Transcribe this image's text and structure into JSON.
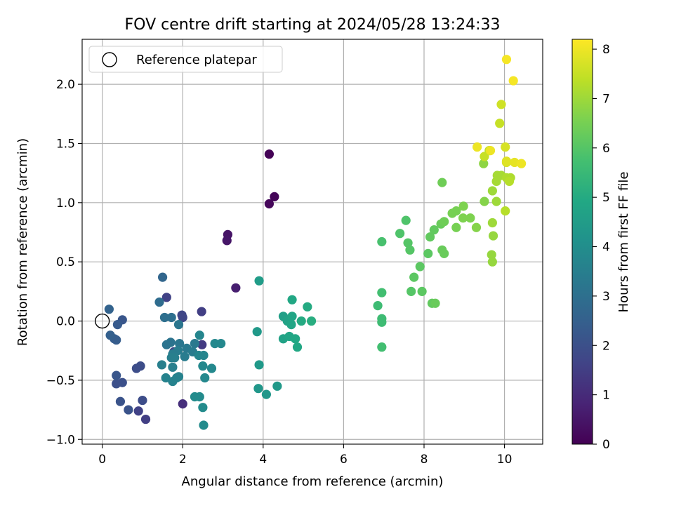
{
  "chart_data": {
    "type": "scatter",
    "title": "FOV centre drift starting at 2024/05/28 13:24:33",
    "xlabel": "Angular distance from reference (arcmin)",
    "ylabel": "Rotation from reference (arcmin)",
    "xlim": [
      -0.5,
      10.95
    ],
    "ylim": [
      -1.04,
      2.38
    ],
    "xticks": [
      0,
      2,
      4,
      6,
      8,
      10
    ],
    "xtick_labels": [
      "0",
      "2",
      "4",
      "6",
      "8",
      "10"
    ],
    "yticks": [
      -1.0,
      -0.5,
      0.0,
      0.5,
      1.0,
      1.5,
      2.0
    ],
    "ytick_labels": [
      "−1.0",
      "−0.5",
      "0.0",
      "0.5",
      "1.0",
      "1.5",
      "2.0"
    ],
    "grid": true,
    "legend": {
      "placement": "top-left",
      "entries": [
        "Reference platepar"
      ]
    },
    "reference_point": {
      "x": 0,
      "y": 0,
      "label": "Reference platepar"
    },
    "colorbar": {
      "label": "Hours from first FF file",
      "range": [
        0,
        8.2
      ],
      "ticks": [
        0,
        1,
        2,
        3,
        4,
        5,
        6,
        7,
        8
      ],
      "tick_labels": [
        "0",
        "1",
        "2",
        "3",
        "4",
        "5",
        "6",
        "7",
        "8"
      ],
      "colormap": "viridis"
    },
    "points": [
      {
        "x": 4.15,
        "y": 1.41,
        "h": 0.05
      },
      {
        "x": 4.28,
        "y": 1.05,
        "h": 0.1
      },
      {
        "x": 4.15,
        "y": 0.99,
        "h": 0.15
      },
      {
        "x": 3.12,
        "y": 0.73,
        "h": 0.45
      },
      {
        "x": 3.1,
        "y": 0.68,
        "h": 0.5
      },
      {
        "x": 3.32,
        "y": 0.28,
        "h": 0.7
      },
      {
        "x": 2.0,
        "y": -0.7,
        "h": 1.1
      },
      {
        "x": 2.48,
        "y": -0.2,
        "h": 1.4
      },
      {
        "x": 2.47,
        "y": 0.08,
        "h": 1.5
      },
      {
        "x": 1.08,
        "y": -0.83,
        "h": 1.5
      },
      {
        "x": 0.9,
        "y": -0.76,
        "h": 1.6
      },
      {
        "x": 1.6,
        "y": 0.2,
        "h": 1.6
      },
      {
        "x": 1.98,
        "y": 0.05,
        "h": 1.7
      },
      {
        "x": 2.0,
        "y": 0.03,
        "h": 1.7
      },
      {
        "x": 1.78,
        "y": -0.26,
        "h": 1.8
      },
      {
        "x": 1.0,
        "y": -0.67,
        "h": 1.9
      },
      {
        "x": 0.95,
        "y": -0.38,
        "h": 1.9
      },
      {
        "x": 0.85,
        "y": -0.4,
        "h": 1.9
      },
      {
        "x": 0.5,
        "y": -0.52,
        "h": 2.0
      },
      {
        "x": 0.35,
        "y": -0.53,
        "h": 2.0
      },
      {
        "x": 0.65,
        "y": -0.75,
        "h": 2.1
      },
      {
        "x": 0.45,
        "y": -0.68,
        "h": 2.1
      },
      {
        "x": 0.35,
        "y": -0.46,
        "h": 2.2
      },
      {
        "x": 0.5,
        "y": 0.01,
        "h": 2.2
      },
      {
        "x": 0.38,
        "y": -0.03,
        "h": 2.3
      },
      {
        "x": 0.3,
        "y": -0.15,
        "h": 2.4
      },
      {
        "x": 0.35,
        "y": -0.16,
        "h": 2.4
      },
      {
        "x": 0.2,
        "y": -0.12,
        "h": 2.5
      },
      {
        "x": 0.17,
        "y": 0.1,
        "h": 2.6
      },
      {
        "x": 1.5,
        "y": 0.37,
        "h": 2.7
      },
      {
        "x": 1.42,
        "y": 0.16,
        "h": 2.9
      },
      {
        "x": 1.55,
        "y": 0.03,
        "h": 3.0
      },
      {
        "x": 1.72,
        "y": 0.03,
        "h": 3.0
      },
      {
        "x": 1.6,
        "y": -0.2,
        "h": 3.1
      },
      {
        "x": 1.7,
        "y": -0.18,
        "h": 3.1
      },
      {
        "x": 1.9,
        "y": -0.03,
        "h": 3.2
      },
      {
        "x": 1.92,
        "y": -0.19,
        "h": 3.2
      },
      {
        "x": 2.1,
        "y": -0.23,
        "h": 3.3
      },
      {
        "x": 2.3,
        "y": -0.19,
        "h": 3.3
      },
      {
        "x": 2.25,
        "y": -0.26,
        "h": 3.4
      },
      {
        "x": 2.05,
        "y": -0.3,
        "h": 3.4
      },
      {
        "x": 1.88,
        "y": -0.25,
        "h": 3.4
      },
      {
        "x": 1.75,
        "y": -0.28,
        "h": 3.4
      },
      {
        "x": 1.72,
        "y": -0.31,
        "h": 3.5
      },
      {
        "x": 1.8,
        "y": -0.31,
        "h": 3.5
      },
      {
        "x": 1.48,
        "y": -0.37,
        "h": 3.5
      },
      {
        "x": 1.75,
        "y": -0.39,
        "h": 3.5
      },
      {
        "x": 1.58,
        "y": -0.48,
        "h": 3.6
      },
      {
        "x": 1.75,
        "y": -0.51,
        "h": 3.6
      },
      {
        "x": 1.9,
        "y": -0.47,
        "h": 3.6
      },
      {
        "x": 1.85,
        "y": -0.48,
        "h": 3.6
      },
      {
        "x": 2.4,
        "y": -0.29,
        "h": 3.7
      },
      {
        "x": 2.42,
        "y": -0.12,
        "h": 3.7
      },
      {
        "x": 2.52,
        "y": -0.29,
        "h": 3.7
      },
      {
        "x": 2.5,
        "y": -0.38,
        "h": 3.8
      },
      {
        "x": 2.55,
        "y": -0.48,
        "h": 3.8
      },
      {
        "x": 2.72,
        "y": -0.4,
        "h": 3.8
      },
      {
        "x": 2.8,
        "y": -0.19,
        "h": 3.8
      },
      {
        "x": 2.95,
        "y": -0.19,
        "h": 3.8
      },
      {
        "x": 2.3,
        "y": -0.64,
        "h": 3.9
      },
      {
        "x": 2.42,
        "y": -0.64,
        "h": 3.9
      },
      {
        "x": 2.5,
        "y": -0.73,
        "h": 3.9
      },
      {
        "x": 2.52,
        "y": -0.88,
        "h": 3.9
      },
      {
        "x": 3.88,
        "y": -0.57,
        "h": 4.3
      },
      {
        "x": 4.08,
        "y": -0.62,
        "h": 4.3
      },
      {
        "x": 4.35,
        "y": -0.55,
        "h": 4.4
      },
      {
        "x": 3.9,
        "y": -0.37,
        "h": 4.4
      },
      {
        "x": 3.85,
        "y": -0.09,
        "h": 4.4
      },
      {
        "x": 3.9,
        "y": 0.34,
        "h": 4.5
      },
      {
        "x": 4.5,
        "y": 0.04,
        "h": 4.6
      },
      {
        "x": 4.6,
        "y": 0.0,
        "h": 4.7
      },
      {
        "x": 4.5,
        "y": -0.15,
        "h": 4.7
      },
      {
        "x": 4.65,
        "y": -0.13,
        "h": 4.8
      },
      {
        "x": 4.7,
        "y": -0.03,
        "h": 4.8
      },
      {
        "x": 4.72,
        "y": 0.04,
        "h": 4.8
      },
      {
        "x": 4.72,
        "y": 0.18,
        "h": 4.9
      },
      {
        "x": 4.8,
        "y": -0.15,
        "h": 4.9
      },
      {
        "x": 4.85,
        "y": -0.22,
        "h": 4.9
      },
      {
        "x": 4.95,
        "y": 0.0,
        "h": 5.0
      },
      {
        "x": 5.1,
        "y": 0.12,
        "h": 5.0
      },
      {
        "x": 5.2,
        "y": 0.0,
        "h": 5.1
      },
      {
        "x": 6.85,
        "y": 0.13,
        "h": 5.6
      },
      {
        "x": 6.95,
        "y": 0.02,
        "h": 5.6
      },
      {
        "x": 6.95,
        "y": -0.01,
        "h": 5.6
      },
      {
        "x": 6.95,
        "y": -0.22,
        "h": 5.7
      },
      {
        "x": 6.95,
        "y": 0.24,
        "h": 5.7
      },
      {
        "x": 6.95,
        "y": 0.67,
        "h": 5.8
      },
      {
        "x": 7.4,
        "y": 0.74,
        "h": 5.9
      },
      {
        "x": 7.55,
        "y": 0.85,
        "h": 5.9
      },
      {
        "x": 7.6,
        "y": 0.66,
        "h": 6.0
      },
      {
        "x": 7.65,
        "y": 0.6,
        "h": 6.0
      },
      {
        "x": 7.68,
        "y": 0.25,
        "h": 6.0
      },
      {
        "x": 7.75,
        "y": 0.37,
        "h": 6.1
      },
      {
        "x": 7.95,
        "y": 0.25,
        "h": 6.1
      },
      {
        "x": 7.9,
        "y": 0.46,
        "h": 6.1
      },
      {
        "x": 8.1,
        "y": 0.57,
        "h": 6.1
      },
      {
        "x": 8.15,
        "y": 0.71,
        "h": 6.2
      },
      {
        "x": 8.25,
        "y": 0.77,
        "h": 6.2
      },
      {
        "x": 8.2,
        "y": 0.15,
        "h": 6.2
      },
      {
        "x": 8.28,
        "y": 0.15,
        "h": 6.3
      },
      {
        "x": 8.45,
        "y": 0.6,
        "h": 6.3
      },
      {
        "x": 8.5,
        "y": 0.57,
        "h": 6.3
      },
      {
        "x": 8.42,
        "y": 0.82,
        "h": 6.3
      },
      {
        "x": 8.5,
        "y": 0.84,
        "h": 6.4
      },
      {
        "x": 8.45,
        "y": 1.17,
        "h": 6.4
      },
      {
        "x": 8.7,
        "y": 0.91,
        "h": 6.5
      },
      {
        "x": 8.8,
        "y": 0.93,
        "h": 6.5
      },
      {
        "x": 8.8,
        "y": 0.79,
        "h": 6.5
      },
      {
        "x": 8.98,
        "y": 0.97,
        "h": 6.6
      },
      {
        "x": 8.97,
        "y": 0.87,
        "h": 6.6
      },
      {
        "x": 9.15,
        "y": 0.87,
        "h": 6.6
      },
      {
        "x": 9.3,
        "y": 0.79,
        "h": 6.7
      },
      {
        "x": 9.5,
        "y": 1.01,
        "h": 6.7
      },
      {
        "x": 9.48,
        "y": 1.33,
        "h": 6.8
      },
      {
        "x": 9.68,
        "y": 0.56,
        "h": 6.9
      },
      {
        "x": 9.7,
        "y": 0.5,
        "h": 6.9
      },
      {
        "x": 9.72,
        "y": 0.72,
        "h": 6.9
      },
      {
        "x": 9.7,
        "y": 0.83,
        "h": 7.0
      },
      {
        "x": 9.8,
        "y": 1.01,
        "h": 7.0
      },
      {
        "x": 9.7,
        "y": 1.1,
        "h": 7.0
      },
      {
        "x": 9.8,
        "y": 1.18,
        "h": 7.1
      },
      {
        "x": 9.82,
        "y": 1.23,
        "h": 7.1
      },
      {
        "x": 9.92,
        "y": 1.23,
        "h": 7.1
      },
      {
        "x": 10.05,
        "y": 1.21,
        "h": 7.2
      },
      {
        "x": 10.15,
        "y": 1.21,
        "h": 7.2
      },
      {
        "x": 10.12,
        "y": 1.18,
        "h": 7.3
      },
      {
        "x": 10.02,
        "y": 0.93,
        "h": 7.3
      },
      {
        "x": 9.62,
        "y": 1.44,
        "h": 7.4
      },
      {
        "x": 9.5,
        "y": 1.39,
        "h": 7.5
      },
      {
        "x": 9.88,
        "y": 1.67,
        "h": 7.5
      },
      {
        "x": 9.92,
        "y": 1.83,
        "h": 7.6
      },
      {
        "x": 10.05,
        "y": 1.34,
        "h": 7.7
      },
      {
        "x": 10.02,
        "y": 1.47,
        "h": 7.7
      },
      {
        "x": 10.05,
        "y": 1.35,
        "h": 7.8
      },
      {
        "x": 10.25,
        "y": 1.34,
        "h": 7.9
      },
      {
        "x": 10.42,
        "y": 1.33,
        "h": 8.0
      },
      {
        "x": 9.32,
        "y": 1.47,
        "h": 8.0
      },
      {
        "x": 9.65,
        "y": 1.44,
        "h": 8.0
      },
      {
        "x": 10.05,
        "y": 2.21,
        "h": 8.1
      },
      {
        "x": 10.22,
        "y": 2.03,
        "h": 8.1
      }
    ]
  }
}
